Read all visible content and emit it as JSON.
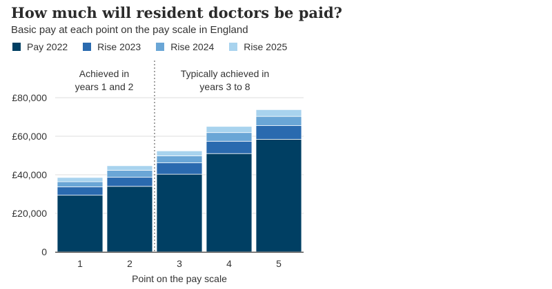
{
  "header": {
    "title": "How much will resident doctors be paid?",
    "subtitle": "Basic pay at each point on the pay scale in England"
  },
  "annotations": [
    {
      "line1": "Achieved in",
      "line2": "years 1 and 2"
    },
    {
      "line1": "Typically achieved in",
      "line2": "years 3 to 8"
    }
  ],
  "colors": {
    "pay2022": "#003f63",
    "rise2023": "#2a6aaf",
    "rise2024": "#6aa6d6",
    "rise2025": "#a8d3ee"
  },
  "chart_data": {
    "type": "bar",
    "stacked": true,
    "categories": [
      "1",
      "2",
      "3",
      "4",
      "5"
    ],
    "series": [
      {
        "name": "Pay 2022",
        "values": [
          29400,
          34000,
          40300,
          51000,
          58400
        ]
      },
      {
        "name": "Rise 2023",
        "values": [
          4300,
          4700,
          5900,
          6400,
          7100
        ]
      },
      {
        "name": "Rise 2024",
        "values": [
          2700,
          3600,
          3600,
          4500,
          4800
        ]
      },
      {
        "name": "Rise 2025",
        "values": [
          2200,
          2400,
          2600,
          3200,
          3500
        ]
      }
    ],
    "xlabel": "Point on the pay scale",
    "ylabel": "",
    "ylim": [
      0,
      80000
    ],
    "yticks": [
      {
        "value": 0,
        "label": "0"
      },
      {
        "value": 20000,
        "label": "£20,000"
      },
      {
        "value": 40000,
        "label": "£40,000"
      },
      {
        "value": 60000,
        "label": "£60,000"
      },
      {
        "value": 80000,
        "label": "£80,000"
      }
    ],
    "grid": true,
    "legend_position": "top-left",
    "divider_after_category": "2"
  }
}
